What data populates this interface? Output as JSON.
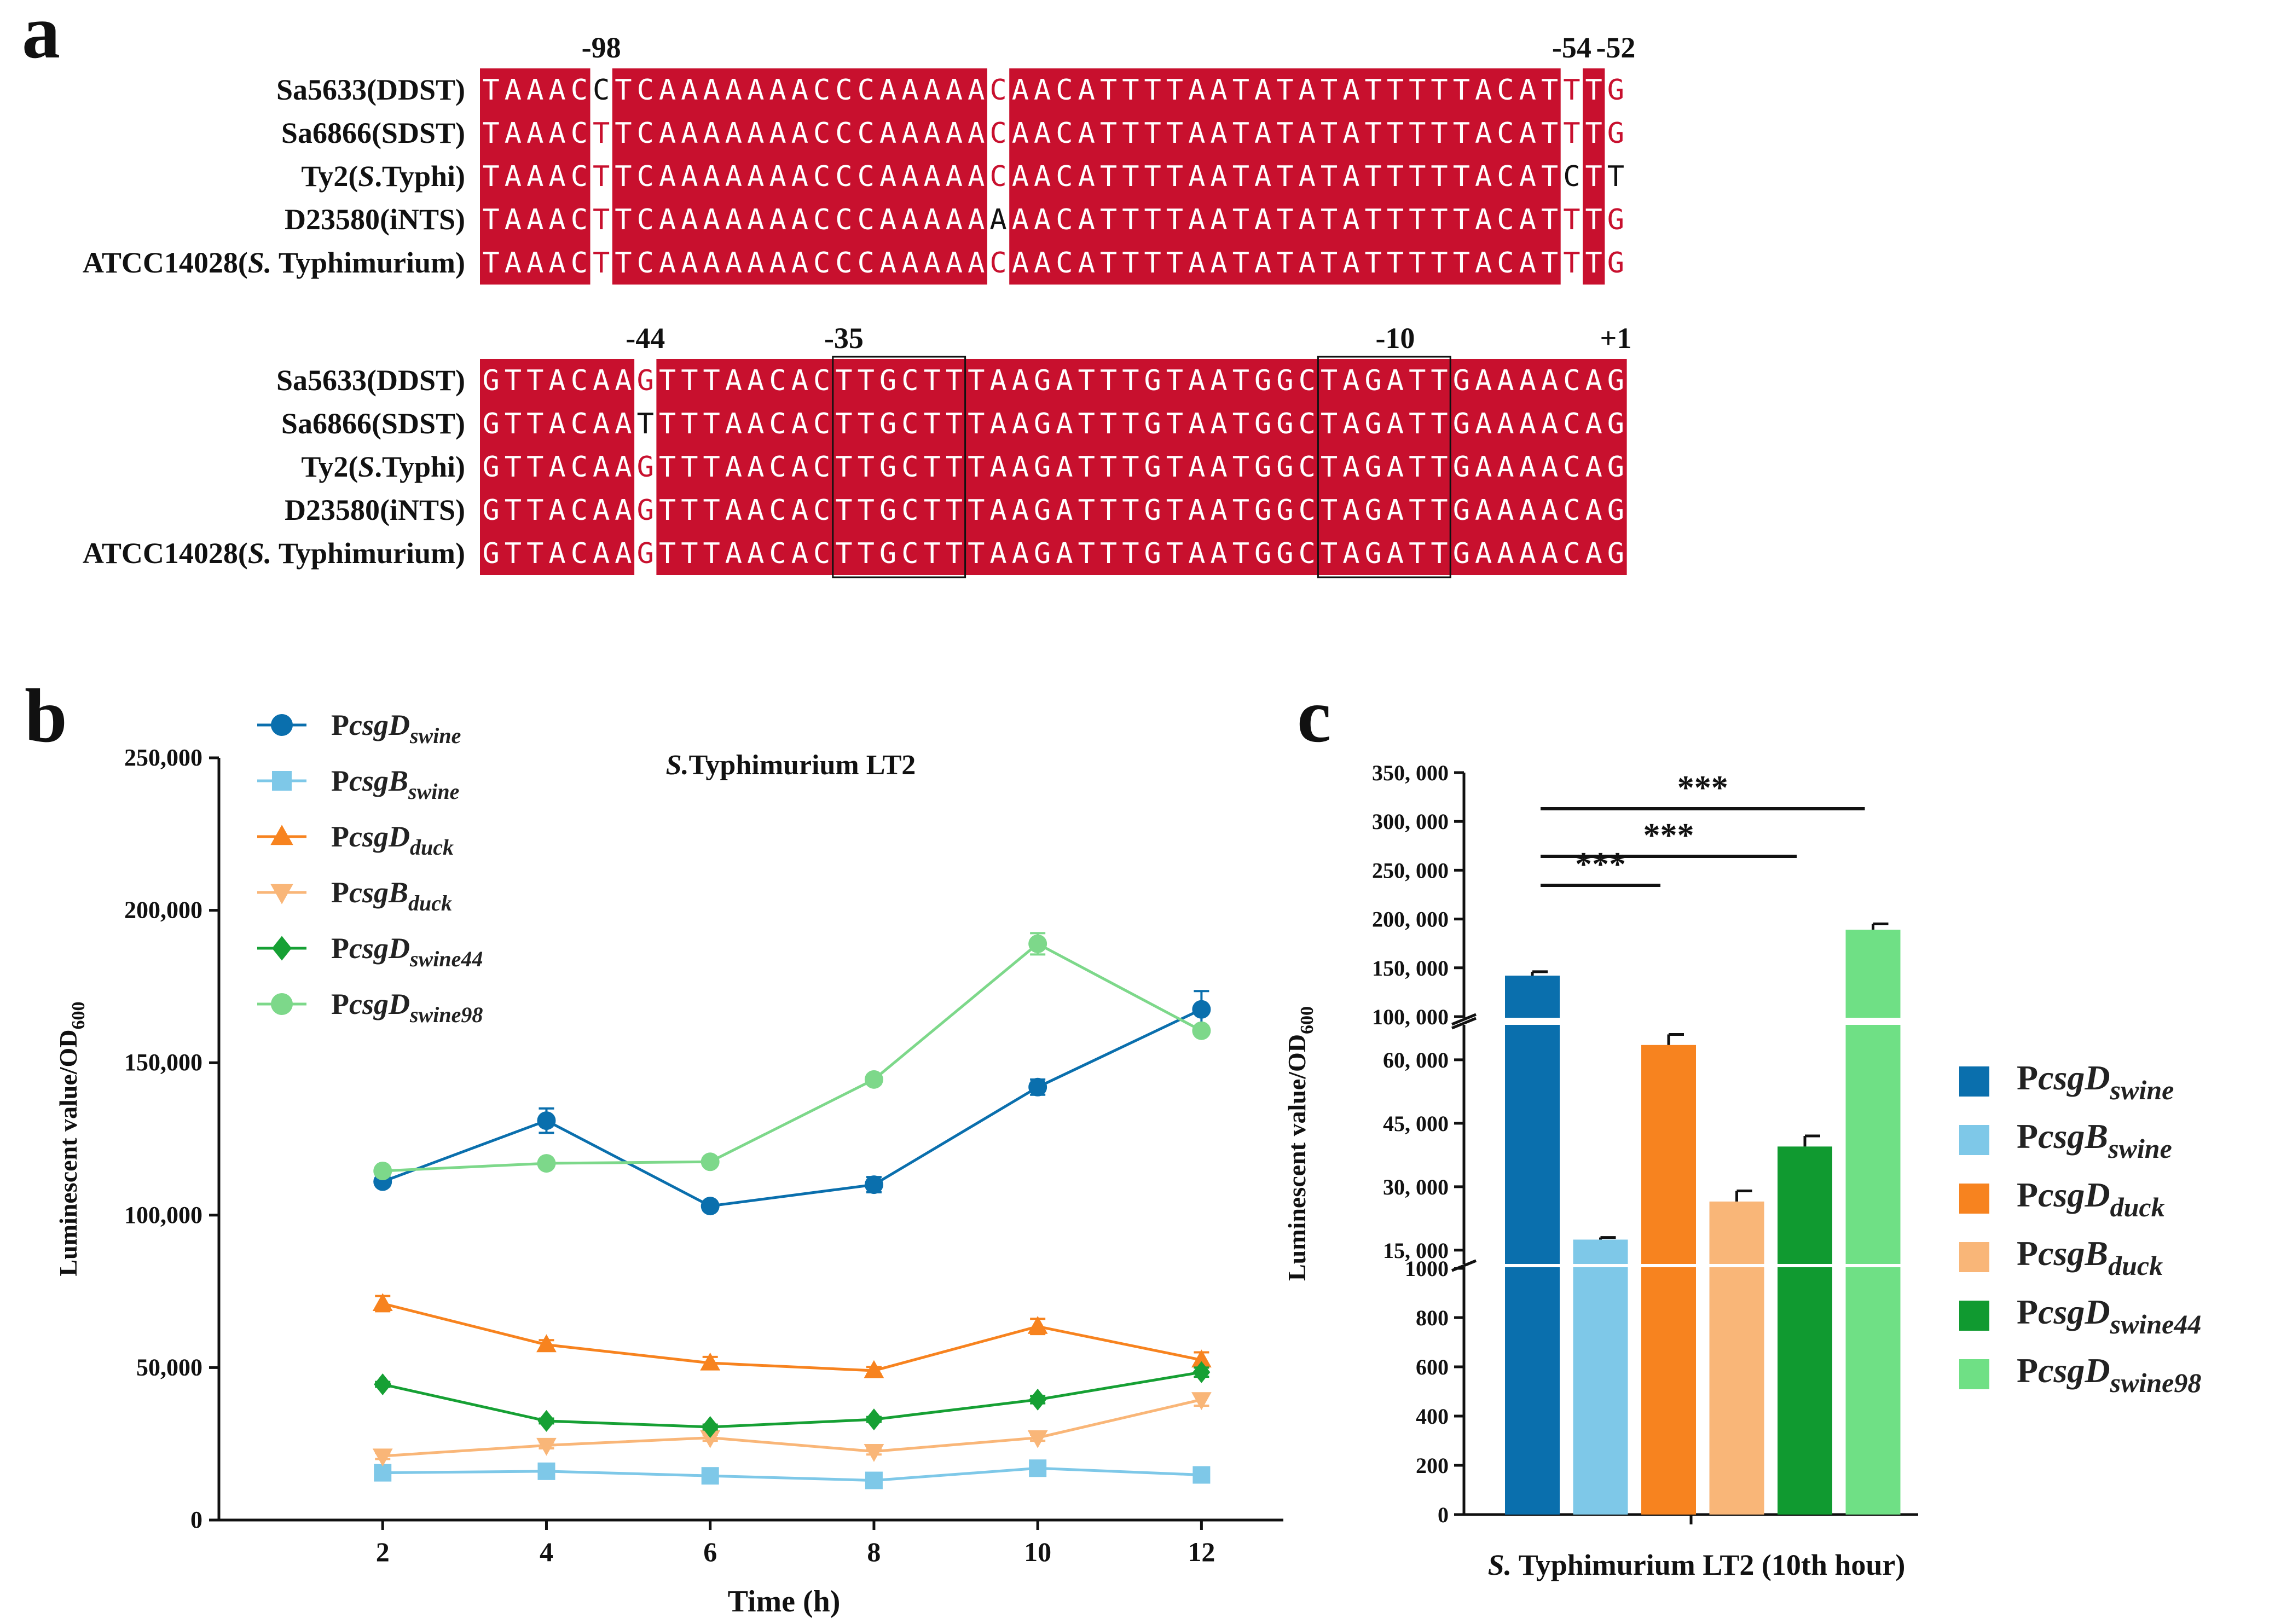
{
  "panels": {
    "a": "a",
    "b": "b",
    "c": "c"
  },
  "alignment": {
    "colors": {
      "conserved_bg": "#c8102e",
      "conserved_text": "#ffffff",
      "variant_text": "#c8102e",
      "plain_text": "#111111"
    },
    "blocks": [
      {
        "names": [
          [
            "Sa5633(DDST)"
          ],
          [
            "Sa6866(SDST)"
          ],
          [
            "Ty2(",
            "S",
            ".Typhi)"
          ],
          [
            "D23580(iNTS)"
          ],
          [
            "ATCC14028(",
            "S.",
            " Typhimurium)"
          ]
        ],
        "sequences": [
          "TAAACCTCAAAAAAACCCAAAAACAACATTTTAATATATATTTTTACATTTG",
          "TAAACTTCAAAAAAACCCAAAAACAACATTTTAATATATATTTTTACATTTG",
          "TAAACTTCAAAAAAACCCAAAAACAACATTTTAATATATATTTTTACATCTT",
          "TAAACTTCAAAAAAACCCAAAAAAAACATTTTAATATATATTTTTACATTTG",
          "TAAACTTCAAAAAAACCCAAAAACAACATTTTAATATATATTTTTACATTTG"
        ],
        "position_labels": [
          {
            "text": "-98",
            "col": 5
          },
          {
            "text": "-54",
            "col": 49
          },
          {
            "text": "-52",
            "col": 51
          }
        ],
        "boxes": []
      },
      {
        "names": [
          [
            "Sa5633(DDST)"
          ],
          [
            "Sa6866(SDST)"
          ],
          [
            "Ty2(",
            "S",
            ".Typhi)"
          ],
          [
            "D23580(iNTS)"
          ],
          [
            "ATCC14028(",
            "S.",
            " Typhimurium)"
          ]
        ],
        "sequences": [
          "GTTACAAGTTTAACACTTGCTTTAAGATTTGTAATGGCTAGATTGAAAACAG",
          "GTTACAATTTTAACACTTGCTTTAAGATTTGTAATGGCTAGATTGAAAACAG",
          "GTTACAAGTTTAACACTTGCTTTAAGATTTGTAATGGCTAGATTGAAAACAG",
          "GTTACAAGTTTAACACTTGCTTTAAGATTTGTAATGGCTAGATTGAAAACAG",
          "GTTACAAGTTTAACACTTGCTTTAAGATTTGTAATGGCTAGATTGAAAACAG"
        ],
        "position_labels": [
          {
            "text": "-44",
            "col": 7
          },
          {
            "text": "-35",
            "col": 16
          },
          {
            "text": "-10",
            "col": 41
          },
          {
            "text": "+1",
            "col": 51
          }
        ],
        "boxes": [
          {
            "from": 16,
            "to": 21
          },
          {
            "from": 38,
            "to": 43
          }
        ]
      }
    ]
  },
  "chart_data": [
    {
      "type": "line",
      "panel": "b",
      "title": "S.Typhimurium LT2",
      "title_italic": "S.",
      "title_rest": "Typhimurium LT2",
      "xlabel": "Time (h)",
      "ylabel_main": "Luminescent value/OD",
      "ylabel_sub": "600",
      "x": [
        2,
        4,
        6,
        8,
        10,
        12
      ],
      "xlim": [
        0,
        13
      ],
      "ylim": [
        0,
        250000
      ],
      "yticks": [
        0,
        50000,
        100000,
        150000,
        200000,
        250000
      ],
      "ytick_labels": [
        "0",
        "50,000",
        "100,000",
        "150,000",
        "200,000",
        "250,000"
      ],
      "xtick_labels": [
        "2",
        "4",
        "6",
        "8",
        "10",
        "12"
      ],
      "legend_position": "top-left",
      "series": [
        {
          "name": "PcsgDswine",
          "prefix": "P",
          "gene": "csgD",
          "sub": "swine",
          "color": "#0a6fad",
          "marker": "circle",
          "values": [
            111000,
            131000,
            103000,
            110000,
            142000,
            167500
          ],
          "errors": [
            1500,
            4000,
            1500,
            2500,
            2500,
            6000
          ]
        },
        {
          "name": "PcsgBswine",
          "prefix": "P",
          "gene": "csgB",
          "sub": "swine",
          "color": "#7ec8e8",
          "marker": "square",
          "values": [
            15500,
            16000,
            14500,
            13000,
            17000,
            14800
          ],
          "errors": [
            800,
            800,
            800,
            800,
            800,
            800
          ]
        },
        {
          "name": "PcsgDduck",
          "prefix": "P",
          "gene": "csgD",
          "sub": "duck",
          "color": "#f7831f",
          "marker": "triangle-up",
          "values": [
            71000,
            57500,
            51500,
            49000,
            63500,
            52500
          ],
          "errors": [
            2500,
            1500,
            2000,
            1200,
            2500,
            2500
          ]
        },
        {
          "name": "PcsgBduck",
          "prefix": "P",
          "gene": "csgB",
          "sub": "duck",
          "color": "#f9b678",
          "marker": "triangle-down",
          "values": [
            21000,
            24500,
            27000,
            22500,
            27000,
            39500
          ],
          "errors": [
            1000,
            1000,
            1000,
            1000,
            1000,
            2000
          ]
        },
        {
          "name": "PcsgDswine44",
          "prefix": "P",
          "gene": "csgD",
          "sub": "swine44",
          "color": "#16a034",
          "marker": "diamond",
          "values": [
            44500,
            32500,
            30500,
            33000,
            39500,
            48500
          ],
          "errors": [
            800,
            800,
            800,
            800,
            1200,
            1500
          ]
        },
        {
          "name": "PcsgDswine98",
          "prefix": "P",
          "gene": "csgD",
          "sub": "swine98",
          "color": "#7dd88a",
          "marker": "circle",
          "values": [
            114500,
            117000,
            117500,
            144500,
            189000,
            160500
          ],
          "errors": [
            1000,
            1000,
            1000,
            1500,
            3500,
            1500
          ]
        }
      ]
    },
    {
      "type": "bar",
      "panel": "c",
      "xlabel": "S. Typhimurium LT2 (10th hour)",
      "xlabel_italic": "S.",
      "xlabel_rest": " Typhimurium LT2 (10th hour)",
      "ylabel_main": "Luminescent value/OD",
      "ylabel_sub": "600",
      "axis_breaks": true,
      "segments": [
        {
          "range": [
            0,
            1000
          ],
          "ticks": [
            0,
            200,
            400,
            600,
            800,
            1000
          ],
          "tick_labels": [
            "0",
            "200",
            "400",
            "600",
            "800",
            "1000"
          ]
        },
        {
          "range": [
            12000,
            68000
          ],
          "ticks": [
            15000,
            30000,
            45000,
            60000
          ],
          "tick_labels": [
            "15, 000",
            "30, 000",
            "45, 000",
            "60, 000"
          ]
        },
        {
          "range": [
            100000,
            350000
          ],
          "ticks": [
            100000,
            150000,
            200000,
            250000,
            300000,
            350000
          ],
          "tick_labels": [
            "100, 000",
            "150, 000",
            "200, 000",
            "250, 000",
            "300, 000",
            "350, 000"
          ]
        }
      ],
      "categories": [
        "PcsgDswine",
        "PcsgBswine",
        "PcsgDduck",
        "PcsgBduck",
        "PcsgDswine44",
        "PcsgDswine98"
      ],
      "values": [
        142000,
        17500,
        63500,
        26500,
        39500,
        189000
      ],
      "errors": [
        4000,
        500,
        2500,
        2500,
        2500,
        6000
      ],
      "colors": [
        "#0a6fad",
        "#7ec8e8",
        "#f7831f",
        "#f9b678",
        "#109a30",
        "#6fe085"
      ],
      "legend": [
        {
          "prefix": "P",
          "gene": "csgD",
          "sub": "swine"
        },
        {
          "prefix": "P",
          "gene": "csgB",
          "sub": "swine"
        },
        {
          "prefix": "P",
          "gene": "csgD",
          "sub": "duck"
        },
        {
          "prefix": "P",
          "gene": "csgB",
          "sub": "duck"
        },
        {
          "prefix": "P",
          "gene": "csgD",
          "sub": "swine44"
        },
        {
          "prefix": "P",
          "gene": "csgD",
          "sub": "swine98"
        }
      ],
      "legend_position": "right",
      "significance": [
        {
          "from": 0,
          "to": 2,
          "label": "***"
        },
        {
          "from": 0,
          "to": 4,
          "label": "***"
        },
        {
          "from": 0,
          "to": 5,
          "label": "***"
        }
      ]
    }
  ]
}
